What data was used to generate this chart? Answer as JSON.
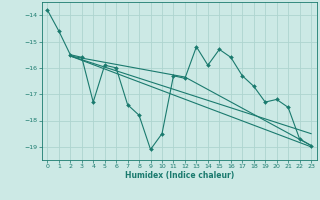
{
  "xlabel": "Humidex (Indice chaleur)",
  "bg_color": "#cce9e5",
  "grid_color": "#aed4cf",
  "line_color": "#1a7a6e",
  "xlim": [
    -0.5,
    23.5
  ],
  "ylim": [
    -19.5,
    -13.5
  ],
  "yticks": [
    -19,
    -18,
    -17,
    -16,
    -15,
    -14
  ],
  "xticks": [
    0,
    1,
    2,
    3,
    4,
    5,
    6,
    7,
    8,
    9,
    10,
    11,
    12,
    13,
    14,
    15,
    16,
    17,
    18,
    19,
    20,
    21,
    22,
    23
  ],
  "series1": {
    "x": [
      0,
      1,
      2,
      3,
      4,
      5,
      6,
      7,
      8,
      9,
      10,
      11,
      12,
      13,
      14,
      15,
      16,
      17,
      18,
      19,
      20,
      21,
      22,
      23
    ],
    "y": [
      -13.8,
      -14.6,
      -15.5,
      -15.6,
      -17.3,
      -15.9,
      -16.0,
      -17.4,
      -17.8,
      -19.1,
      -18.5,
      -16.3,
      -16.4,
      -15.2,
      -15.9,
      -15.3,
      -15.6,
      -16.3,
      -16.7,
      -17.3,
      -17.2,
      -17.5,
      -18.7,
      -18.95
    ]
  },
  "series2": {
    "x": [
      2,
      23
    ],
    "y": [
      -15.55,
      -19.0
    ]
  },
  "series3": {
    "x": [
      2,
      23
    ],
    "y": [
      -15.55,
      -18.5
    ]
  },
  "series4": {
    "x": [
      2,
      12,
      23
    ],
    "y": [
      -15.55,
      -16.35,
      -18.95
    ]
  }
}
